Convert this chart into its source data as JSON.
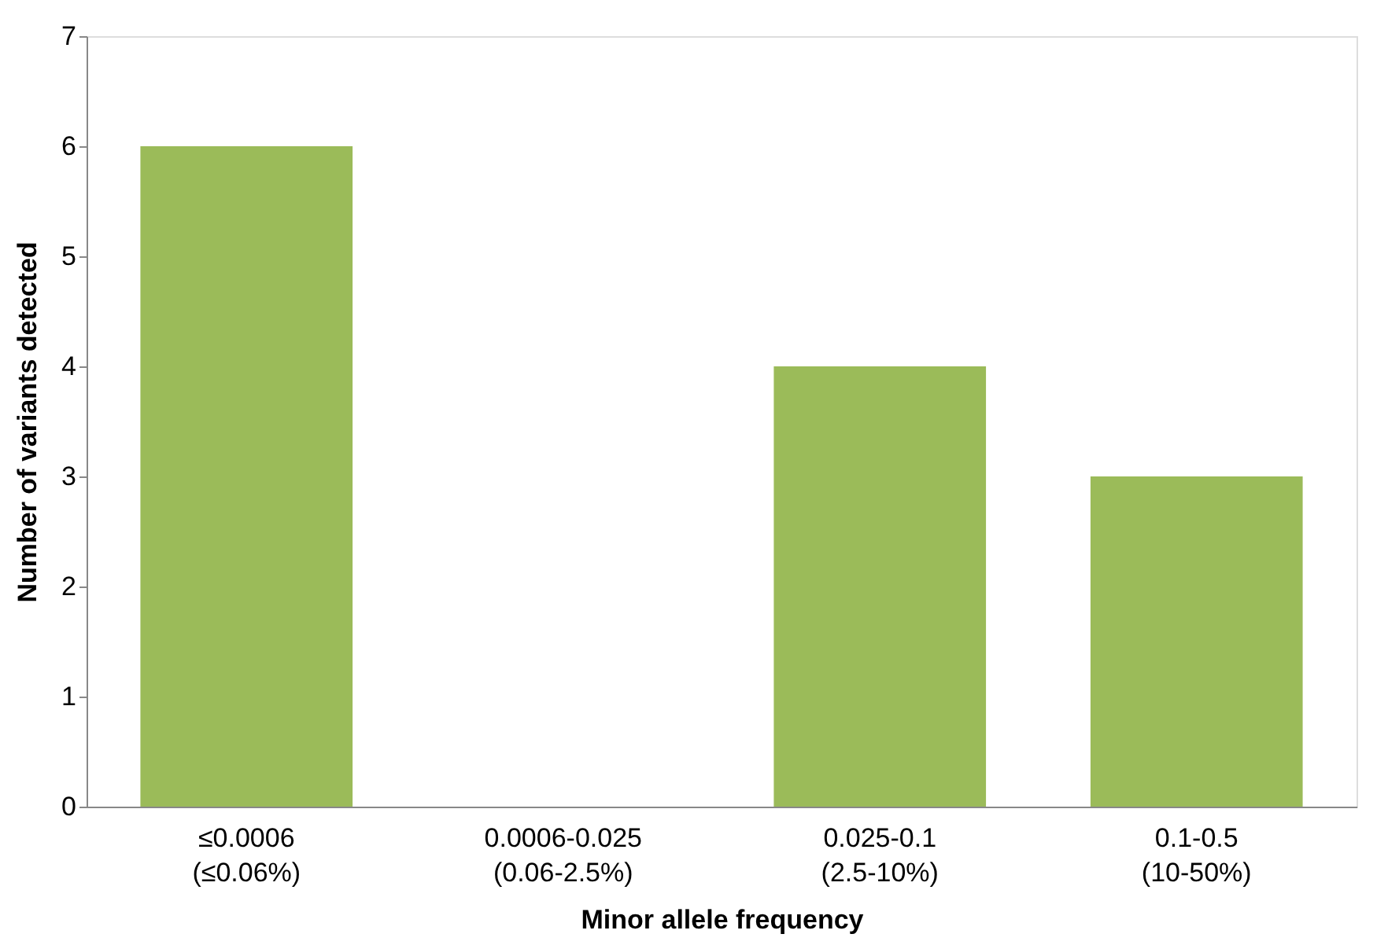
{
  "chart_data": {
    "type": "bar",
    "xlabel": "Minor allele frequency",
    "ylabel": "Number of variants detected",
    "categories": [
      "≤0.0006\n(≤0.06%)",
      "0.0006-0.025\n(0.06-2.5%)",
      "0.025-0.1\n(2.5-10%)",
      "0.1-0.5\n(10-50%)"
    ],
    "values": [
      6,
      0,
      4,
      3
    ],
    "color": "#9bbb59",
    "ylim": [
      0,
      7
    ],
    "yticks": [
      0,
      1,
      2,
      3,
      4,
      5,
      6,
      7
    ],
    "grid": false
  }
}
